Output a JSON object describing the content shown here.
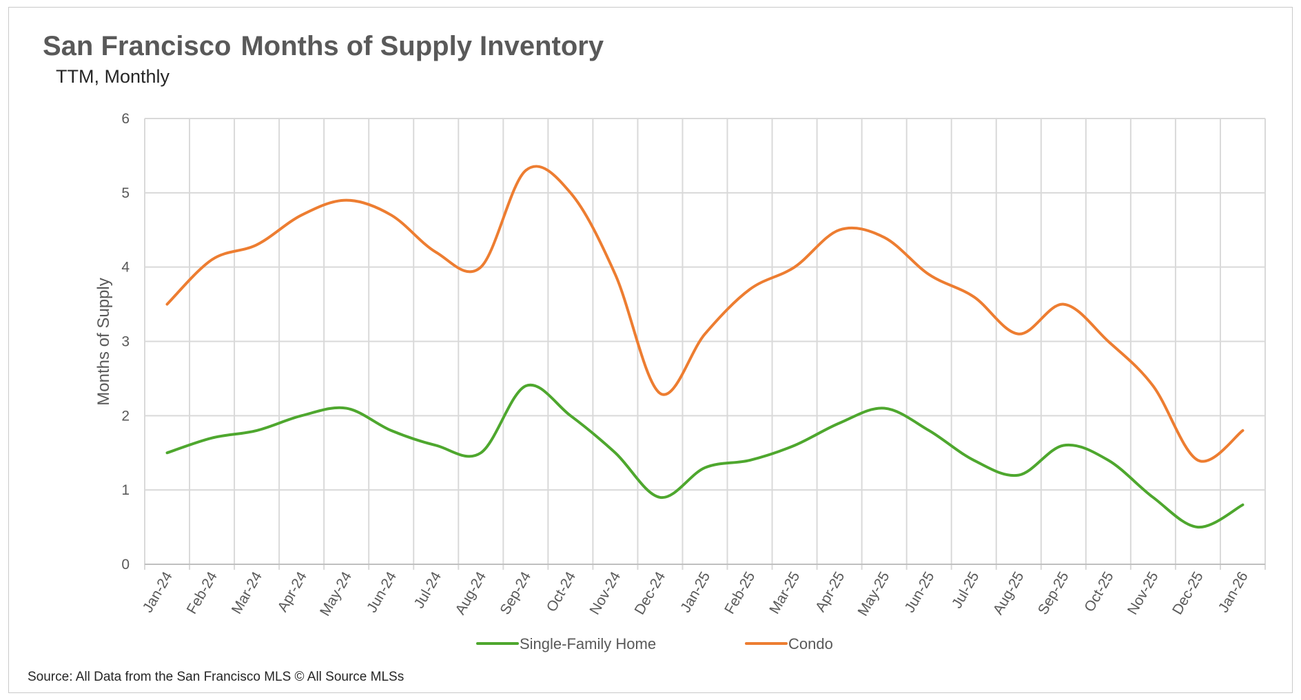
{
  "colors": {
    "single_family": "#4ea72e",
    "condo": "#ed7d31",
    "grid": "#d9d9d9",
    "axis_text": "#595959"
  },
  "chart_data": {
    "type": "line",
    "title_part1": "San Francisco",
    "title_part2": "Months of Supply Inventory",
    "subtitle": "TTM, Monthly",
    "xlabel": "",
    "ylabel": "Months of Supply",
    "ylim": [
      0,
      6
    ],
    "yticks": [
      "0",
      "1",
      "2",
      "3",
      "4",
      "5",
      "6"
    ],
    "grid": true,
    "smooth": true,
    "legend_position": "bottom",
    "categories": [
      "Jan-24",
      "Feb-24",
      "Mar-24",
      "Apr-24",
      "May-24",
      "Jun-24",
      "Jul-24",
      "Aug-24",
      "Sep-24",
      "Oct-24",
      "Nov-24",
      "Dec-24",
      "Jan-25",
      "Feb-25",
      "Mar-25",
      "Apr-25",
      "May-25",
      "Jun-25",
      "Jul-25",
      "Aug-25",
      "Sep-25",
      "Oct-25",
      "Nov-25",
      "Dec-25",
      "Jan-26"
    ],
    "series": [
      {
        "name": "Single-Family Home",
        "color_key": "single_family",
        "values": [
          1.5,
          1.7,
          1.8,
          2.0,
          2.1,
          1.8,
          1.6,
          1.5,
          2.4,
          2.0,
          1.5,
          0.9,
          1.3,
          1.4,
          1.6,
          1.9,
          2.1,
          1.8,
          1.4,
          1.2,
          1.6,
          1.4,
          0.9,
          0.5,
          0.8
        ]
      },
      {
        "name": "Condo",
        "color_key": "condo",
        "values": [
          3.5,
          4.1,
          4.3,
          4.7,
          4.9,
          4.7,
          4.2,
          4.0,
          5.3,
          5.0,
          3.9,
          2.3,
          3.1,
          3.7,
          4.0,
          4.5,
          4.4,
          3.9,
          3.6,
          3.1,
          3.5,
          3.0,
          2.4,
          1.4,
          1.8
        ]
      }
    ],
    "source": "Source: All Data from the San Francisco MLS © All Source MLSs"
  }
}
